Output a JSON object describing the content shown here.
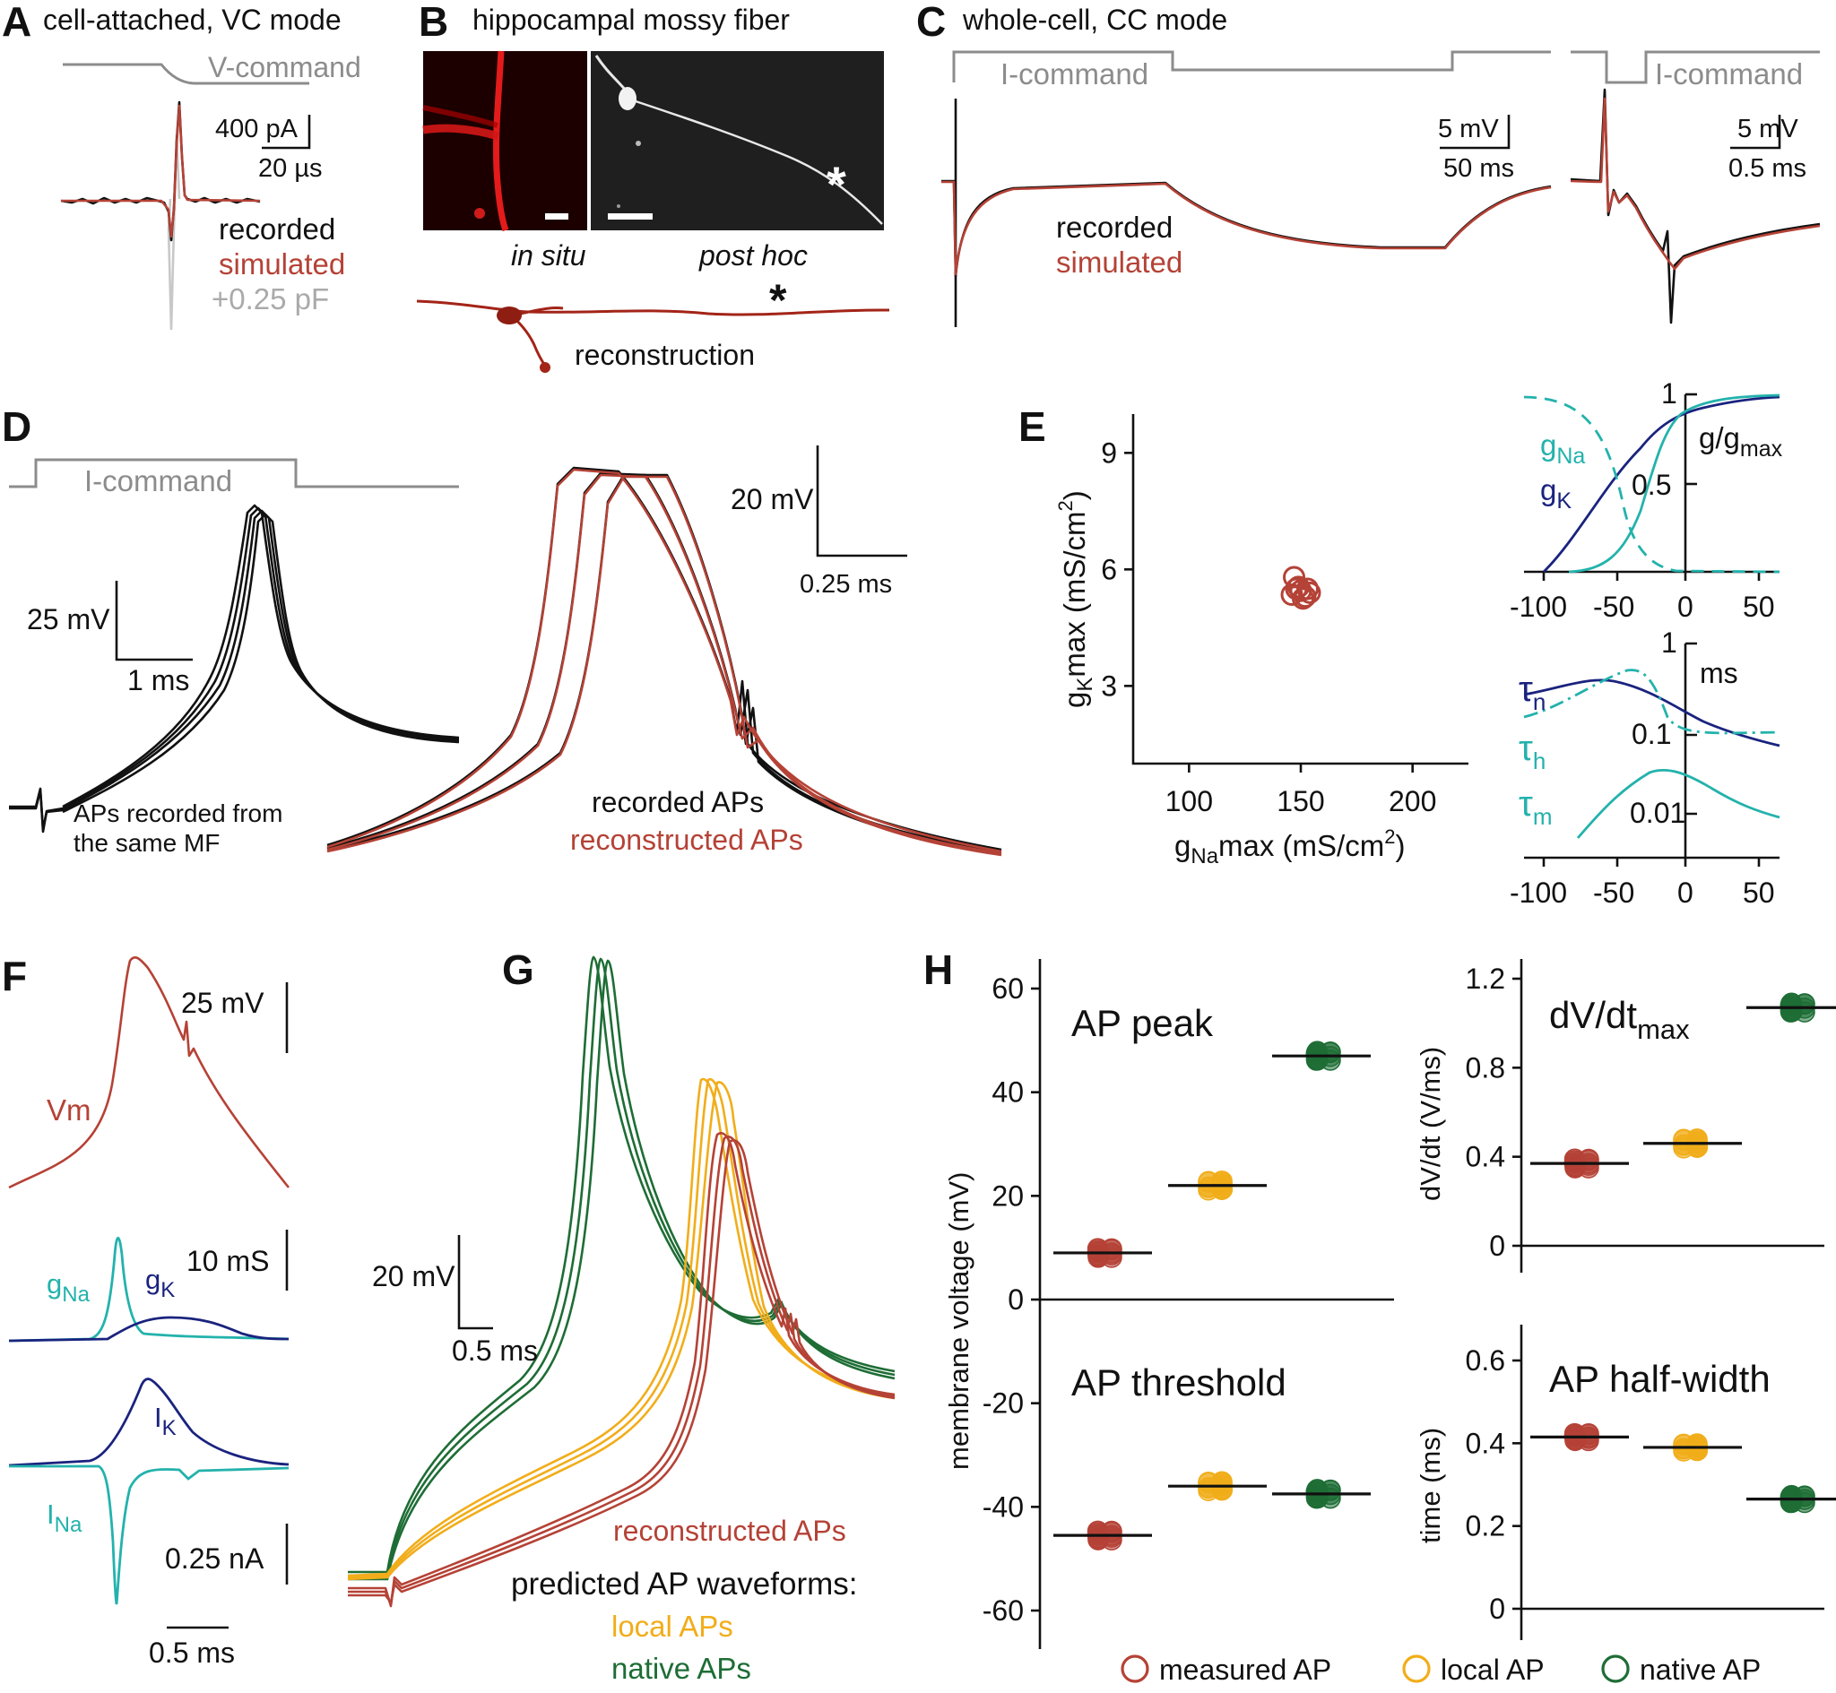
{
  "colors": {
    "measured": "#b54236",
    "local": "#f1ad1a",
    "native": "#1e6d35",
    "teal": "#23b2ac",
    "navy": "#1a237e",
    "gray": "#8c8c8c",
    "black": "#111111"
  },
  "panelA": {
    "letter": "A",
    "title": "cell-attached, VC mode",
    "command": "V-command",
    "scale_y": "400 pA",
    "scale_x": "20 µs",
    "legend": [
      "recorded",
      "simulated",
      "+0.25 pF"
    ]
  },
  "panelB": {
    "letter": "B",
    "title": "hippocampal mossy fiber",
    "label_left": "in situ",
    "label_right": "post hoc",
    "label_bottom": "reconstruction",
    "marker": "*"
  },
  "panelC": {
    "letter": "C",
    "title": "whole-cell, CC mode",
    "command_left": "I-command",
    "command_right": "I-command",
    "scale_left_y": "5 mV",
    "scale_left_x": "50 ms",
    "scale_right_y": "5 mV",
    "scale_right_x": "0.5 ms",
    "legend": [
      "recorded",
      "simulated"
    ]
  },
  "panelD": {
    "letter": "D",
    "command": "I-command",
    "scale_left_y": "25 mV",
    "scale_left_x": "1 ms",
    "note_line1": "APs recorded from",
    "note_line2": "the same MF",
    "scale_right_y": "20 mV",
    "scale_right_x": "0.25 ms",
    "legend": [
      "recorded APs",
      "reconstructed APs"
    ]
  },
  "panelE": {
    "letter": "E",
    "scatter": {
      "xlabel_pre": "g",
      "xlabel_sub": "Na",
      "xlabel_post": "max (mS/cm",
      "xlabel_sup": "2",
      "xlabel_end": ")",
      "ylabel_pre": "g",
      "ylabel_sub": "K",
      "ylabel_post": "max (mS/cm",
      "ylabel_sup": "2",
      "ylabel_end": ")",
      "xticks": [
        "100",
        "150",
        "200"
      ],
      "yticks": [
        "9",
        "6",
        "3"
      ]
    },
    "gating": {
      "ylabel_pre": "g/g",
      "ylabel_sub": "max",
      "gna_pre": "g",
      "gna_sub": "Na",
      "gk_pre": "g",
      "gk_sub": "K",
      "yticks": [
        "1",
        "0.5"
      ],
      "xticks": [
        "-100",
        "-50",
        "0",
        "50"
      ]
    },
    "tau": {
      "unit": "ms",
      "tau_n_pre": "τ",
      "tau_n_sub": "n",
      "tau_h_pre": "τ",
      "tau_h_sub": "h",
      "tau_m_pre": "τ",
      "tau_m_sub": "m",
      "yticks": [
        "1",
        "0.1",
        "0.01"
      ],
      "xticks": [
        "-100",
        "-50",
        "0",
        "50"
      ]
    }
  },
  "panelF": {
    "letter": "F",
    "vm_label": "Vm",
    "scale_vm": "25 mV",
    "gna_pre": "g",
    "gna_sub": "Na",
    "gk_pre": "g",
    "gk_sub": "K",
    "scale_g": "10 mS",
    "ik_pre": "I",
    "ik_sub": "K",
    "ina_pre": "I",
    "ina_sub": "Na",
    "scale_i": "0.25 nA",
    "scale_t": "0.5 ms"
  },
  "panelG": {
    "letter": "G",
    "scale_y": "20 mV",
    "scale_x": "0.5 ms",
    "legend_reconstructed": "reconstructed APs",
    "legend_predicted": "predicted AP waveforms:",
    "legend_local": "local APs",
    "legend_native": "native APs"
  },
  "panelH": {
    "letter": "H",
    "legend": [
      "measured AP",
      "local AP",
      "native AP"
    ]
  },
  "chart_data": [
    {
      "type": "scatter",
      "id": "E_conductances",
      "title": "",
      "xlabel": "gNamax (mS/cm2)",
      "ylabel": "gKmax (mS/cm2)",
      "xlim": [
        75,
        225
      ],
      "ylim": [
        1,
        10
      ],
      "x": [
        146,
        148,
        150,
        152,
        154,
        149,
        151,
        153,
        147
      ],
      "y": [
        5.35,
        5.5,
        5.45,
        5.3,
        5.4,
        5.55,
        5.25,
        5.5,
        5.8
      ]
    },
    {
      "type": "scatter",
      "id": "H_ap_peak",
      "title": "AP peak",
      "ylabel": "membrane voltage (mV)",
      "ylim": [
        -65,
        68
      ],
      "yticks": [
        "60",
        "40",
        "20",
        "0",
        "-20",
        "-40",
        "-60"
      ],
      "categories": [
        "measured AP",
        "local AP",
        "native AP"
      ],
      "values": [
        9,
        22,
        47
      ]
    },
    {
      "type": "scatter",
      "id": "H_ap_threshold",
      "title": "AP threshold",
      "ylabel": "membrane voltage (mV)",
      "ylim": [
        -65,
        68
      ],
      "categories": [
        "measured AP",
        "local AP",
        "native AP"
      ],
      "values": [
        -45.5,
        -36,
        -37.5
      ]
    },
    {
      "type": "scatter",
      "id": "H_dvdt_max",
      "title_pre": "dV/dt",
      "title_sub": "max",
      "ylabel": "dV/dt (V/ms)",
      "ylim": [
        -0.05,
        1.3
      ],
      "yticks": [
        "1.2",
        "0.8",
        "0.4",
        "0"
      ],
      "categories": [
        "measured AP",
        "local AP",
        "native AP"
      ],
      "values": [
        0.37,
        0.46,
        1.07
      ]
    },
    {
      "type": "scatter",
      "id": "H_half_width",
      "title": "AP half-width",
      "ylabel": "time (ms)",
      "ylim": [
        -0.02,
        0.68
      ],
      "yticks": [
        "0.6",
        "0.4",
        "0.2",
        "0"
      ],
      "categories": [
        "measured AP",
        "local AP",
        "native AP"
      ],
      "values": [
        0.415,
        0.39,
        0.265
      ]
    }
  ]
}
